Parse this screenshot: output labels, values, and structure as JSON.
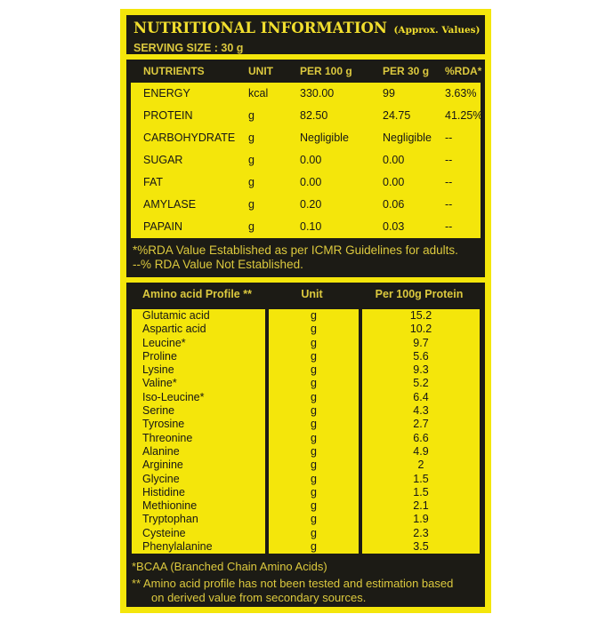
{
  "colors": {
    "yellow": "#F4E60B",
    "black": "#1C1B15",
    "yellow_text": "#DCC93E",
    "title_text": "#F2DF2E"
  },
  "header": {
    "title": "NUTRITIONAL INFORMATION",
    "title_suffix": "(Approx. Values)",
    "serving_size": "SERVING SIZE : 30 g"
  },
  "nutrients_table": {
    "headers": [
      "NUTRIENTS",
      "UNIT",
      "PER 100 g",
      "PER 30 g",
      "%RDA*"
    ],
    "rows": [
      {
        "name": "ENERGY",
        "unit": "kcal",
        "per100": "330.00",
        "per30": "99",
        "rda": "3.63%"
      },
      {
        "name": "PROTEIN",
        "unit": "g",
        "per100": "82.50",
        "per30": "24.75",
        "rda": "41.25%"
      },
      {
        "name": "CARBOHYDRATE",
        "unit": "g",
        "per100": "Negligible",
        "per30": "Negligible",
        "rda": "--"
      },
      {
        "name": "SUGAR",
        "unit": "g",
        "per100": "0.00",
        "per30": "0.00",
        "rda": "--"
      },
      {
        "name": "FAT",
        "unit": "g",
        "per100": "0.00",
        "per30": "0.00",
        "rda": "--"
      },
      {
        "name": "AMYLASE",
        "unit": "g",
        "per100": "0.20",
        "per30": "0.06",
        "rda": "--"
      },
      {
        "name": "PAPAIN",
        "unit": "g",
        "per100": "0.10",
        "per30": "0.03",
        "rda": "--"
      }
    ],
    "footnotes": [
      "*%RDA Value Established as per ICMR Guidelines for adults.",
      "--% RDA Value Not Established."
    ]
  },
  "amino_table": {
    "headers": [
      "Amino acid Profile **",
      "Unit",
      "Per 100g Protein"
    ],
    "rows": [
      {
        "name": "Glutamic acid",
        "unit": "g",
        "value": "15.2"
      },
      {
        "name": "Aspartic acid",
        "unit": "g",
        "value": "10.2"
      },
      {
        "name": "Leucine*",
        "unit": "g",
        "value": "9.7"
      },
      {
        "name": "Proline",
        "unit": "g",
        "value": "5.6"
      },
      {
        "name": "Lysine",
        "unit": "g",
        "value": "9.3"
      },
      {
        "name": "Valine*",
        "unit": "g",
        "value": "5.2"
      },
      {
        "name": "Iso-Leucine*",
        "unit": "g",
        "value": "6.4"
      },
      {
        "name": "Serine",
        "unit": "g",
        "value": "4.3"
      },
      {
        "name": "Tyrosine",
        "unit": "g",
        "value": "2.7"
      },
      {
        "name": "Threonine",
        "unit": "g",
        "value": "6.6"
      },
      {
        "name": "Alanine",
        "unit": "g",
        "value": "4.9"
      },
      {
        "name": "Arginine",
        "unit": "g",
        "value": "2"
      },
      {
        "name": "Glycine",
        "unit": "g",
        "value": "1.5"
      },
      {
        "name": "Histidine",
        "unit": "g",
        "value": "1.5"
      },
      {
        "name": "Methionine",
        "unit": "g",
        "value": "2.1"
      },
      {
        "name": "Tryptophan",
        "unit": "g",
        "value": "1.9"
      },
      {
        "name": "Cysteine",
        "unit": "g",
        "value": "2.3"
      },
      {
        "name": "Phenylalanine",
        "unit": "g",
        "value": "3.5"
      }
    ],
    "footnotes": [
      "*BCAA (Branched Chain Amino Acids)",
      "** Amino acid profile has not been tested and estimation based",
      "on derived value from secondary sources."
    ]
  }
}
